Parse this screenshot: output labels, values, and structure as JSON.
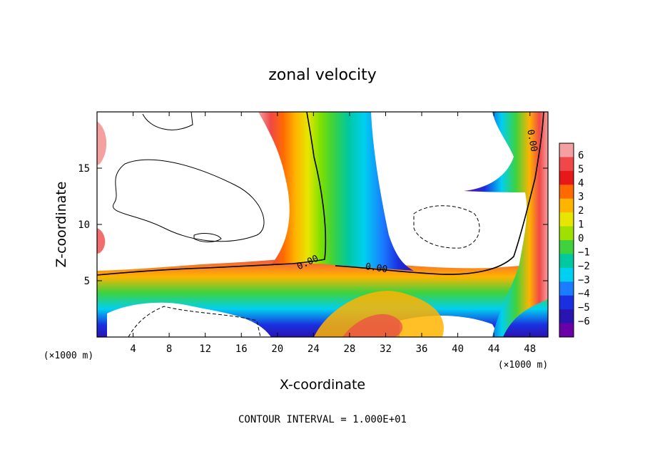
{
  "chart_data": {
    "type": "heatmap",
    "title": "zonal velocity",
    "xlabel": "X-coordinate",
    "ylabel": "Z-coordinate",
    "x_unit_label": "(×1000 m)",
    "y_unit_label": "(×1000 m)",
    "xlim": [
      0,
      50
    ],
    "ylim": [
      0,
      20
    ],
    "x_ticks": [
      4,
      8,
      12,
      16,
      20,
      24,
      28,
      32,
      36,
      40,
      44,
      48
    ],
    "y_ticks": [
      5,
      10,
      15
    ],
    "colorbar": {
      "levels": [
        6,
        5,
        4,
        3,
        2,
        1,
        0,
        -1,
        -2,
        -3,
        -4,
        -5,
        -6
      ],
      "colors": [
        "#f5a0a0",
        "#f04848",
        "#e81818",
        "#ff6a00",
        "#ffb400",
        "#e6e600",
        "#a0e000",
        "#3ed23e",
        "#00c8a0",
        "#00d0f0",
        "#1a7cff",
        "#1a30e0",
        "#2a14b0",
        "#6a00a8"
      ]
    },
    "contour_labels": [
      "0.00",
      "0.00",
      "0.00"
    ],
    "contour_interval_text": "CONTOUR INTERVAL = 1.000E+01",
    "grid": false
  }
}
